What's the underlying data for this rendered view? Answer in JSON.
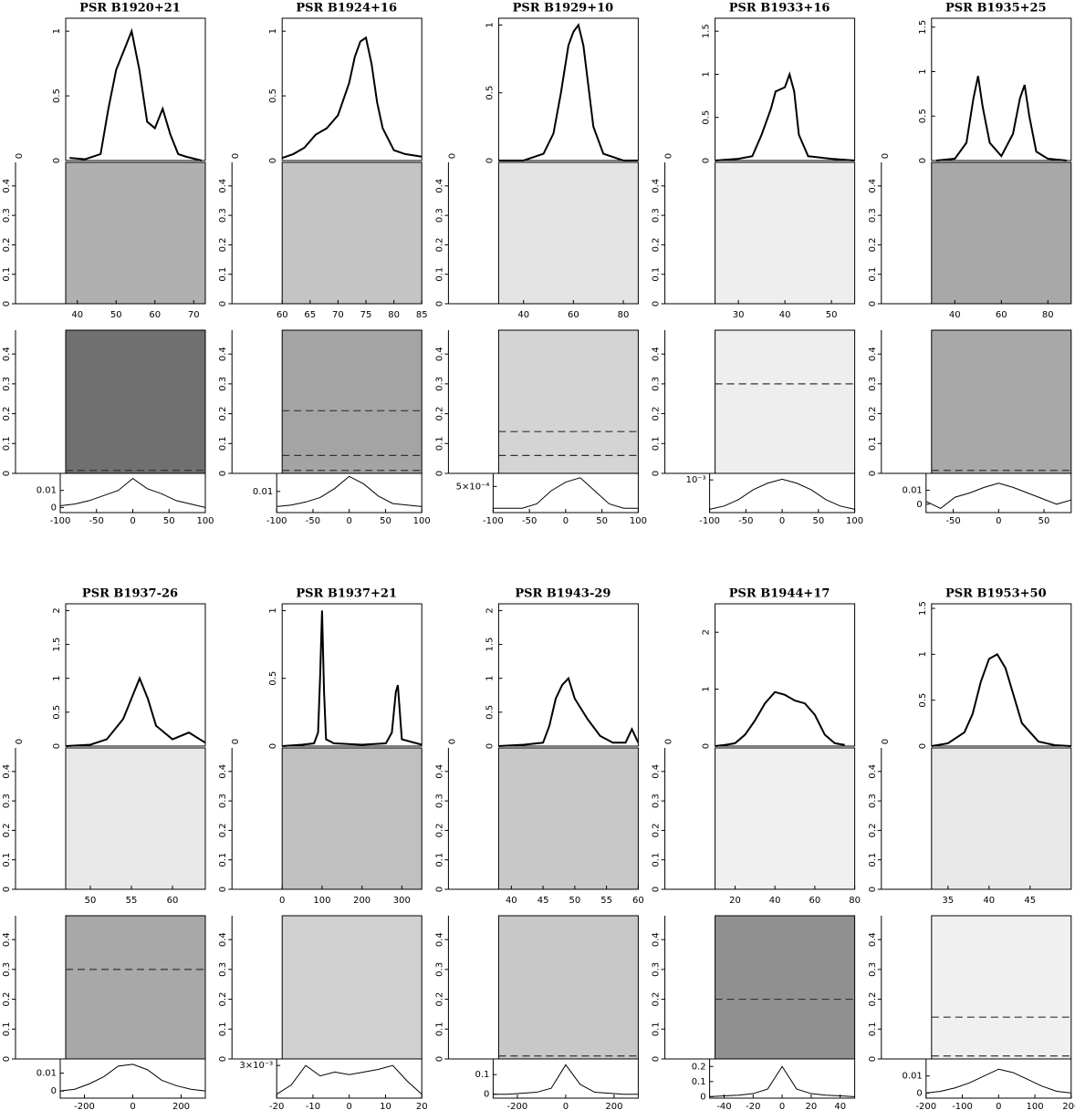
{
  "chart_data": [
    {
      "type": "pulsar",
      "title": "PSR B1920+21",
      "profile": {
        "xlim": [
          37,
          73
        ],
        "ylim": [
          0,
          1.1
        ],
        "yticks": [
          0,
          0.5,
          1
        ],
        "x": [
          38,
          42,
          46,
          48,
          50,
          52,
          54,
          56,
          58,
          60,
          62,
          64,
          66,
          68,
          72
        ],
        "values": [
          0.02,
          0.01,
          0.05,
          0.4,
          0.7,
          0.85,
          1.0,
          0.7,
          0.3,
          0.25,
          0.4,
          0.2,
          0.05,
          0.03,
          0.0
        ]
      },
      "side_xticks": [
        0
      ],
      "image": {
        "xlim": [
          37,
          73
        ],
        "xticks": [
          40,
          50,
          60,
          70
        ],
        "ylim": [
          0,
          0.48
        ],
        "yticks": [
          0,
          0.1,
          0.2,
          0.3,
          0.4
        ],
        "colors": [
          "#b0b0b0",
          "#707070"
        ],
        "dashed": [
          0.01
        ]
      },
      "fourier": {
        "xlim": [
          -100,
          100
        ],
        "xticks": [
          -100,
          -50,
          0,
          50,
          100
        ],
        "ylim": [
          -0.003,
          0.02
        ],
        "yticks": [
          0,
          0.01
        ],
        "x": [
          -100,
          -80,
          -60,
          -40,
          -20,
          0,
          20,
          40,
          60,
          80,
          100
        ],
        "values": [
          0.001,
          0.002,
          0.004,
          0.007,
          0.01,
          0.017,
          0.011,
          0.008,
          0.004,
          0.002,
          0.0
        ]
      }
    },
    {
      "type": "pulsar",
      "title": "PSR B1924+16",
      "profile": {
        "xlim": [
          60,
          85
        ],
        "ylim": [
          0,
          1.1
        ],
        "yticks": [
          0,
          0.5,
          1
        ],
        "x": [
          60,
          62,
          64,
          66,
          68,
          70,
          72,
          73,
          74,
          75,
          76,
          77,
          78,
          80,
          82,
          85
        ],
        "values": [
          0.02,
          0.05,
          0.1,
          0.2,
          0.25,
          0.35,
          0.6,
          0.8,
          0.92,
          0.95,
          0.75,
          0.45,
          0.25,
          0.08,
          0.05,
          0.03
        ]
      },
      "side_xticks": [
        0
      ],
      "image": {
        "xlim": [
          60,
          85
        ],
        "xticks": [
          60,
          65,
          70,
          75,
          80,
          85
        ],
        "ylim": [
          0,
          0.48
        ],
        "yticks": [
          0,
          0.1,
          0.2,
          0.3,
          0.4
        ],
        "colors": [
          "#c4c4c4",
          "#a4a4a4"
        ],
        "dashed": [
          0.21,
          0.06,
          0.01
        ]
      },
      "fourier": {
        "xlim": [
          -100,
          100
        ],
        "xticks": [
          -100,
          -50,
          0,
          50,
          100
        ],
        "ylim": [
          -0.004,
          0.022
        ],
        "yticks": [
          0.01
        ],
        "x": [
          -100,
          -80,
          -60,
          -40,
          -20,
          0,
          20,
          40,
          60,
          80,
          100
        ],
        "values": [
          0.0,
          0.001,
          0.003,
          0.006,
          0.012,
          0.02,
          0.015,
          0.007,
          0.002,
          0.001,
          0.0
        ]
      }
    },
    {
      "type": "pulsar",
      "title": "PSR B1929+10",
      "profile": {
        "xlim": [
          30,
          86
        ],
        "ylim": [
          0,
          1.05
        ],
        "yticks": [
          0,
          0.5,
          1
        ],
        "x": [
          30,
          40,
          48,
          52,
          55,
          58,
          60,
          62,
          64,
          66,
          68,
          72,
          80,
          86
        ],
        "values": [
          0.0,
          0.0,
          0.05,
          0.2,
          0.5,
          0.85,
          0.95,
          1.0,
          0.85,
          0.55,
          0.25,
          0.05,
          0.0,
          0.0
        ]
      },
      "side_xticks": [
        0
      ],
      "image": {
        "xlim": [
          30,
          86
        ],
        "xticks": [
          40,
          60,
          80
        ],
        "ylim": [
          0,
          0.48
        ],
        "yticks": [
          0,
          0.1,
          0.2,
          0.3,
          0.4
        ],
        "colors": [
          "#e4e4e4",
          "#d4d4d4"
        ],
        "dashed": [
          0.14,
          0.06
        ]
      },
      "fourier": {
        "xlim": [
          -100,
          100
        ],
        "xticks": [
          -100,
          -50,
          0,
          50,
          100
        ],
        "ylim": [
          -0.0001,
          0.0008
        ],
        "yticks": [
          {
            "value": 0.0005,
            "label": "5×10⁻⁴"
          }
        ],
        "x": [
          -100,
          -80,
          -60,
          -40,
          -20,
          0,
          20,
          40,
          60,
          80,
          100
        ],
        "values": [
          0,
          0,
          0,
          0.0001,
          0.0004,
          0.0006,
          0.0007,
          0.0004,
          0.0001,
          0,
          0
        ]
      }
    },
    {
      "type": "pulsar",
      "title": "PSR B1933+16",
      "profile": {
        "xlim": [
          25,
          55
        ],
        "ylim": [
          0,
          1.65
        ],
        "yticks": [
          0,
          0.5,
          1,
          1.5
        ],
        "x": [
          25,
          30,
          33,
          35,
          37,
          38,
          40,
          41,
          42,
          43,
          45,
          50,
          55
        ],
        "values": [
          0,
          0.02,
          0.05,
          0.3,
          0.6,
          0.8,
          0.85,
          1.0,
          0.8,
          0.3,
          0.05,
          0.02,
          0
        ]
      },
      "side_xticks": [
        0
      ],
      "image": {
        "xlim": [
          25,
          55
        ],
        "xticks": [
          30,
          40,
          50
        ],
        "ylim": [
          0,
          0.48
        ],
        "yticks": [
          0,
          0.1,
          0.2,
          0.3,
          0.4
        ],
        "colors": [
          "#eeeeee",
          "#eeeeee"
        ],
        "dashed": [
          0.3
        ]
      },
      "fourier": {
        "xlim": [
          -100,
          100
        ],
        "xticks": [
          -100,
          -50,
          0,
          50,
          100
        ],
        "ylim": [
          0,
          0.0012
        ],
        "yticks": [
          {
            "value": 0.001,
            "label": "10⁻³"
          }
        ],
        "x": [
          -100,
          -80,
          -60,
          -40,
          -20,
          0,
          20,
          40,
          60,
          80,
          100
        ],
        "values": [
          0.0001,
          0.0002,
          0.0004,
          0.0007,
          0.0009,
          0.00102,
          0.0009,
          0.0007,
          0.0004,
          0.0002,
          0.0001
        ]
      }
    },
    {
      "type": "pulsar",
      "title": "PSR B1935+25",
      "profile": {
        "xlim": [
          30,
          90
        ],
        "ylim": [
          0,
          1.6
        ],
        "yticks": [
          0,
          0.5,
          1,
          1.5
        ],
        "x": [
          32,
          40,
          45,
          48,
          50,
          52,
          55,
          60,
          65,
          68,
          70,
          72,
          75,
          80,
          88
        ],
        "values": [
          0.0,
          0.02,
          0.2,
          0.7,
          0.95,
          0.6,
          0.2,
          0.05,
          0.3,
          0.7,
          0.85,
          0.5,
          0.1,
          0.02,
          0
        ]
      },
      "side_xticks": [
        0
      ],
      "image": {
        "xlim": [
          30,
          90
        ],
        "xticks": [
          40,
          60,
          80
        ],
        "ylim": [
          0,
          0.48
        ],
        "yticks": [
          0,
          0.1,
          0.2,
          0.3,
          0.4
        ],
        "colors": [
          "#a8a8a8",
          "#a8a8a8"
        ],
        "dashed": [
          0.01
        ]
      },
      "fourier": {
        "xlim": [
          -80,
          80
        ],
        "xticks": [
          -50,
          0,
          50
        ],
        "ylim": [
          -0.006,
          0.022
        ],
        "yticks": [
          0,
          0.01
        ],
        "x": [
          -80,
          -64,
          -48,
          -32,
          -16,
          0,
          16,
          32,
          48,
          64,
          80
        ],
        "values": [
          0.002,
          -0.003,
          0.005,
          0.008,
          0.012,
          0.015,
          0.012,
          0.008,
          0.004,
          0.0,
          0.003
        ]
      }
    },
    {
      "type": "pulsar",
      "title": "PSR B1937-26",
      "profile": {
        "xlim": [
          47,
          64
        ],
        "ylim": [
          0,
          2.1
        ],
        "yticks": [
          0,
          0.5,
          1,
          1.5,
          2
        ],
        "x": [
          47,
          50,
          52,
          54,
          55,
          56,
          57,
          58,
          60,
          62,
          64
        ],
        "values": [
          0,
          0.02,
          0.1,
          0.4,
          0.7,
          1.0,
          0.7,
          0.3,
          0.1,
          0.2,
          0.05
        ]
      },
      "side_xticks": [
        0
      ],
      "image": {
        "xlim": [
          47,
          64
        ],
        "xticks": [
          50,
          55,
          60
        ],
        "ylim": [
          0,
          0.48
        ],
        "yticks": [
          0,
          0.1,
          0.2,
          0.3,
          0.4
        ],
        "colors": [
          "#e8e8e8",
          "#a8a8a8"
        ],
        "dashed": [
          0.3
        ]
      },
      "fourier": {
        "xlim": [
          -300,
          300
        ],
        "xticks": [
          -200,
          0,
          200
        ],
        "ylim": [
          -0.004,
          0.018
        ],
        "yticks": [
          0,
          0.01
        ],
        "x": [
          -300,
          -240,
          -180,
          -120,
          -60,
          0,
          60,
          120,
          180,
          240,
          300
        ],
        "values": [
          0.0,
          0.001,
          0.004,
          0.008,
          0.014,
          0.015,
          0.012,
          0.006,
          0.003,
          0.001,
          0.0
        ]
      }
    },
    {
      "type": "pulsar",
      "title": "PSR B1937+21",
      "profile": {
        "xlim": [
          0,
          350
        ],
        "ylim": [
          0,
          1.05
        ],
        "yticks": [
          0,
          0.5,
          1
        ],
        "x": [
          0,
          50,
          80,
          90,
          95,
          100,
          105,
          110,
          130,
          200,
          260,
          275,
          285,
          290,
          300,
          350
        ],
        "values": [
          0,
          0.01,
          0.02,
          0.1,
          0.5,
          1.0,
          0.4,
          0.05,
          0.02,
          0.01,
          0.02,
          0.1,
          0.4,
          0.45,
          0.05,
          0.01
        ]
      },
      "side_xticks": [
        0
      ],
      "image": {
        "xlim": [
          0,
          350
        ],
        "xticks": [
          0,
          100,
          200,
          300
        ],
        "ylim": [
          0,
          0.48
        ],
        "yticks": [
          0,
          0.1,
          0.2,
          0.3,
          0.4
        ],
        "colors": [
          "#c0c0c0",
          "#d0d0d0"
        ],
        "dashed": []
      },
      "fourier": {
        "xlim": [
          -20,
          20
        ],
        "xticks": [
          -20,
          -10,
          0,
          10,
          20
        ],
        "ylim": [
          0.0005,
          0.0035
        ],
        "yticks": [
          {
            "value": 0.003,
            "label": "3×10⁻³"
          }
        ],
        "x": [
          -20,
          -16,
          -12,
          -8,
          -4,
          0,
          4,
          8,
          12,
          16,
          20
        ],
        "values": [
          0.0008,
          0.0015,
          0.003,
          0.0022,
          0.0025,
          0.0023,
          0.0025,
          0.0027,
          0.003,
          0.0018,
          0.0008
        ]
      }
    },
    {
      "type": "pulsar",
      "title": "PSR B1943-29",
      "profile": {
        "xlim": [
          38,
          60
        ],
        "ylim": [
          0,
          2.1
        ],
        "yticks": [
          0,
          0.5,
          1,
          1.5,
          2
        ],
        "x": [
          38,
          42,
          45,
          46,
          47,
          48,
          49,
          50,
          52,
          54,
          56,
          58,
          59,
          60
        ],
        "values": [
          0.0,
          0.02,
          0.05,
          0.3,
          0.7,
          0.9,
          1.0,
          0.7,
          0.4,
          0.15,
          0.05,
          0.05,
          0.25,
          0.05
        ]
      },
      "side_xticks": [
        0
      ],
      "image": {
        "xlim": [
          38,
          60
        ],
        "xticks": [
          40,
          45,
          50,
          55,
          60
        ],
        "ylim": [
          0,
          0.48
        ],
        "yticks": [
          0,
          0.1,
          0.2,
          0.3,
          0.4
        ],
        "colors": [
          "#c8c8c8",
          "#c8c8c8"
        ],
        "dashed": [
          0.01
        ]
      },
      "fourier": {
        "xlim": [
          -300,
          300
        ],
        "xticks": [
          -200,
          0,
          200
        ],
        "ylim": [
          -0.02,
          0.18
        ],
        "yticks": [
          0,
          0.1
        ],
        "x": [
          -300,
          -240,
          -180,
          -120,
          -60,
          0,
          60,
          120,
          180,
          240,
          300
        ],
        "values": [
          0,
          0,
          0.005,
          0.01,
          0.03,
          0.15,
          0.05,
          0.01,
          0.005,
          0,
          0
        ]
      }
    },
    {
      "type": "pulsar",
      "title": "PSR B1944+17",
      "profile": {
        "xlim": [
          10,
          80
        ],
        "ylim": [
          0,
          2.5
        ],
        "yticks": [
          0,
          1,
          2
        ],
        "x": [
          10,
          15,
          20,
          25,
          30,
          35,
          40,
          45,
          50,
          55,
          60,
          65,
          70,
          75
        ],
        "values": [
          0,
          0.02,
          0.05,
          0.2,
          0.45,
          0.75,
          0.95,
          0.9,
          0.8,
          0.75,
          0.55,
          0.2,
          0.05,
          0.02
        ]
      },
      "side_xticks": [
        0
      ],
      "image": {
        "xlim": [
          10,
          80
        ],
        "xticks": [
          20,
          40,
          60,
          80
        ],
        "ylim": [
          0,
          0.48
        ],
        "yticks": [
          0,
          0.1,
          0.2,
          0.3,
          0.4
        ],
        "colors": [
          "#f0f0f0",
          "#909090"
        ],
        "dashed": [
          0.2
        ]
      },
      "fourier": {
        "xlim": [
          -50,
          50
        ],
        "xticks": [
          -40,
          -20,
          0,
          20,
          40
        ],
        "ylim": [
          -0.01,
          0.25
        ],
        "yticks": [
          0,
          0.1,
          0.2
        ],
        "x": [
          -50,
          -40,
          -30,
          -20,
          -10,
          0,
          10,
          20,
          30,
          40,
          50
        ],
        "values": [
          0,
          0.005,
          0.01,
          0.02,
          0.05,
          0.2,
          0.05,
          0.02,
          0.01,
          0.005,
          0
        ]
      }
    },
    {
      "type": "pulsar",
      "title": "PSR B1953+50",
      "profile": {
        "xlim": [
          33,
          50
        ],
        "ylim": [
          0,
          1.55
        ],
        "yticks": [
          0,
          0.5,
          1,
          1.5
        ],
        "x": [
          33,
          35,
          37,
          38,
          39,
          40,
          41,
          42,
          43,
          44,
          46,
          48,
          50
        ],
        "values": [
          0,
          0.03,
          0.15,
          0.35,
          0.7,
          0.95,
          1.0,
          0.85,
          0.55,
          0.25,
          0.05,
          0.01,
          0
        ]
      },
      "side_xticks": [
        0
      ],
      "image": {
        "xlim": [
          33,
          50
        ],
        "xticks": [
          35,
          40,
          45
        ],
        "ylim": [
          0,
          0.48
        ],
        "yticks": [
          0,
          0.1,
          0.2,
          0.3,
          0.4
        ],
        "colors": [
          "#e8e8e8",
          "#f0f0f0"
        ],
        "dashed": [
          0.14,
          0.01
        ]
      },
      "fourier": {
        "xlim": [
          -200,
          200
        ],
        "xticks": [
          -200,
          -100,
          0,
          100,
          200
        ],
        "ylim": [
          -0.003,
          0.02
        ],
        "yticks": [
          0,
          0.01
        ],
        "x": [
          -200,
          -160,
          -120,
          -80,
          -40,
          0,
          40,
          80,
          120,
          160,
          200
        ],
        "values": [
          0.0,
          0.001,
          0.003,
          0.006,
          0.01,
          0.014,
          0.012,
          0.008,
          0.004,
          0.001,
          0.0
        ]
      }
    }
  ]
}
